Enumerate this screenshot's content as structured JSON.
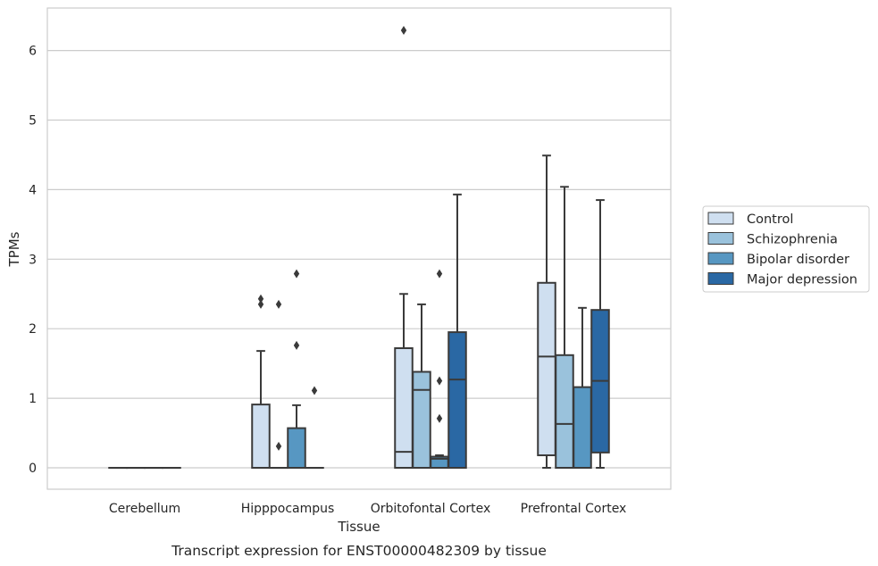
{
  "chart_data": {
    "type": "box",
    "xlabel": "Tissue",
    "ylabel": "TPMs",
    "caption": "Transcript expression for ENST00000482309 by tissue",
    "categories": [
      "Cerebellum",
      "Hipppocampus",
      "Orbitofontal Cortex",
      "Prefrontal Cortex"
    ],
    "ylim": [
      -0.3,
      6.6
    ],
    "yticks": [
      "0",
      "1",
      "2",
      "3",
      "4",
      "5",
      "6"
    ],
    "grid": true,
    "legend_position": "right",
    "series": [
      {
        "name": "Control",
        "color": "#cfdff0",
        "boxes": [
          {
            "min": 0,
            "q1": 0,
            "median": 0,
            "q3": 0,
            "max": 0,
            "outliers": []
          },
          {
            "min": 0,
            "q1": 0,
            "median": 0,
            "q3": 0.91,
            "max": 1.68,
            "outliers": [
              2.35,
              2.43
            ]
          },
          {
            "min": 0,
            "q1": 0,
            "median": 0.23,
            "q3": 1.72,
            "max": 2.5,
            "outliers": [
              6.29
            ]
          },
          {
            "min": 0,
            "q1": 0.18,
            "median": 1.6,
            "q3": 2.66,
            "max": 4.49,
            "outliers": []
          }
        ]
      },
      {
        "name": "Schizophrenia",
        "color": "#9ac2dc",
        "boxes": [
          {
            "min": 0,
            "q1": 0,
            "median": 0,
            "q3": 0,
            "max": 0,
            "outliers": []
          },
          {
            "min": 0,
            "q1": 0,
            "median": 0,
            "q3": 0,
            "max": 0,
            "outliers": [
              0.31,
              2.35
            ]
          },
          {
            "min": 0,
            "q1": 0,
            "median": 1.12,
            "q3": 1.38,
            "max": 2.35,
            "outliers": []
          },
          {
            "min": 0,
            "q1": 0,
            "median": 0.63,
            "q3": 1.62,
            "max": 4.04,
            "outliers": []
          }
        ]
      },
      {
        "name": "Bipolar disorder",
        "color": "#5797c2",
        "boxes": [
          {
            "min": 0,
            "q1": 0,
            "median": 0,
            "q3": 0,
            "max": 0,
            "outliers": []
          },
          {
            "min": 0,
            "q1": 0,
            "median": 0,
            "q3": 0.57,
            "max": 0.9,
            "outliers": [
              1.76,
              2.79
            ]
          },
          {
            "min": 0,
            "q1": 0,
            "median": 0.13,
            "q3": 0.16,
            "max": 0.18,
            "outliers": [
              0.71,
              1.25,
              2.79
            ]
          },
          {
            "min": 0,
            "q1": 0,
            "median": 0,
            "q3": 1.16,
            "max": 2.3,
            "outliers": []
          }
        ]
      },
      {
        "name": "Major depression",
        "color": "#2a68a4",
        "boxes": [
          {
            "min": 0,
            "q1": 0,
            "median": 0,
            "q3": 0,
            "max": 0,
            "outliers": []
          },
          {
            "min": 0,
            "q1": 0,
            "median": 0,
            "q3": 0,
            "max": 0,
            "outliers": [
              1.11
            ]
          },
          {
            "min": 0,
            "q1": 0,
            "median": 1.27,
            "q3": 1.95,
            "max": 3.93,
            "outliers": []
          },
          {
            "min": 0,
            "q1": 0.22,
            "median": 1.25,
            "q3": 2.27,
            "max": 3.85,
            "outliers": []
          }
        ]
      }
    ]
  }
}
